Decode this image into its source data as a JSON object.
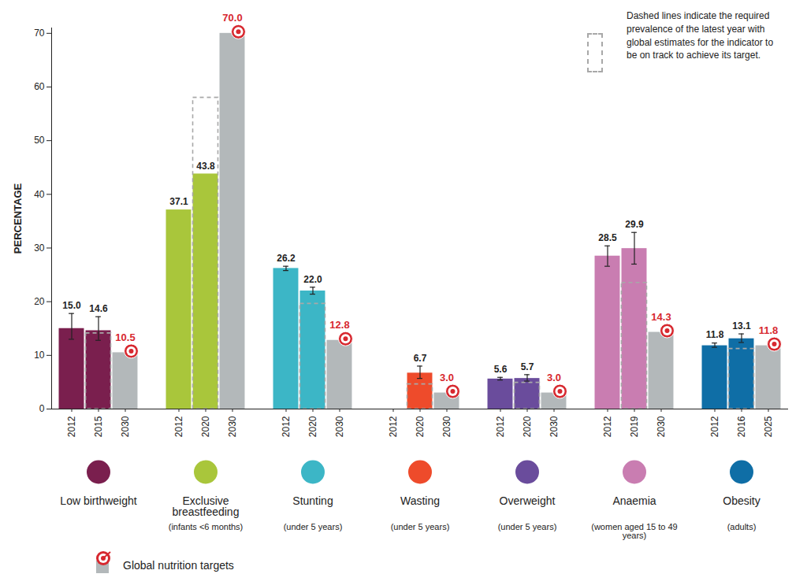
{
  "chart_data": {
    "type": "bar",
    "y_label": "PERCENTAGE",
    "ylim": [
      0,
      71
    ],
    "yticks": [
      0,
      10,
      20,
      30,
      40,
      50,
      60,
      70
    ],
    "data_labels": true,
    "annotation": "Dashed lines indicate the required prevalence of the latest year with global estimates for the indicator to be on track to achieve its target.",
    "legend_label": "Global nutrition targets",
    "target_color": "#b3b8ba",
    "target_label_color": "#d7282f",
    "groups": [
      {
        "name": "Low birthweight",
        "color": "#7a1f4e",
        "colors": [
          "#7a1f4e",
          "#7a1f4e",
          "#b3b8ba"
        ],
        "categories": [
          "2012",
          "2015",
          "2030"
        ],
        "values": [
          15.0,
          14.6,
          10.5
        ],
        "value_labels": [
          "15.0",
          "14.6",
          "10.5"
        ],
        "is_target": [
          false,
          false,
          true
        ],
        "error_low": [
          13.0,
          12.8,
          null
        ],
        "error_high": [
          17.8,
          17.2,
          null
        ],
        "required": [
          null,
          14.1,
          null
        ]
      },
      {
        "name": "Exclusive breastfeeding",
        "subtitle": "(infants <6 months)",
        "color": "#a9c63b",
        "colors": [
          "#a9c63b",
          "#a9c63b",
          "#b3b8ba"
        ],
        "categories": [
          "2012",
          "2020",
          "2030"
        ],
        "values": [
          37.1,
          43.8,
          70.0
        ],
        "value_labels": [
          "37.1",
          "43.8",
          "70.0"
        ],
        "is_target": [
          false,
          false,
          true
        ],
        "required": [
          null,
          58.0,
          null
        ]
      },
      {
        "name": "Stunting",
        "subtitle": "(under 5 years)",
        "color": "#3cb6c6",
        "colors": [
          "#3cb6c6",
          "#3cb6c6",
          "#b3b8ba"
        ],
        "categories": [
          "2012",
          "2020",
          "2030"
        ],
        "values": [
          26.2,
          22.0,
          12.8
        ],
        "value_labels": [
          "26.2",
          "22.0",
          "12.8"
        ],
        "is_target": [
          false,
          false,
          true
        ],
        "error_low": [
          25.8,
          21.4,
          null
        ],
        "error_high": [
          26.6,
          22.7,
          null
        ],
        "required": [
          null,
          19.6,
          null
        ]
      },
      {
        "name": "Wasting",
        "subtitle": "(under 5 years)",
        "color": "#ee4b2b",
        "colors": [
          "#ee4b2b",
          "#ee4b2b",
          "#b3b8ba"
        ],
        "categories": [
          "2012",
          "2020",
          "2030"
        ],
        "values": [
          null,
          6.7,
          3.0
        ],
        "value_labels": [
          null,
          "6.7",
          "3.0"
        ],
        "is_target": [
          false,
          false,
          true
        ],
        "error_low": [
          null,
          5.7,
          null
        ],
        "error_high": [
          null,
          8.0,
          null
        ],
        "required": [
          null,
          4.6,
          null
        ]
      },
      {
        "name": "Overweight",
        "subtitle": "(under 5 years)",
        "color": "#6a4c9c",
        "colors": [
          "#6a4c9c",
          "#6a4c9c",
          "#b3b8ba"
        ],
        "categories": [
          "2012",
          "2020",
          "2030"
        ],
        "values": [
          5.6,
          5.7,
          3.0
        ],
        "value_labels": [
          "5.6",
          "5.7",
          "3.0"
        ],
        "is_target": [
          false,
          false,
          true
        ],
        "error_low": [
          5.4,
          5.2,
          null
        ],
        "error_high": [
          5.9,
          6.4,
          null
        ],
        "required": [
          null,
          4.9,
          null
        ]
      },
      {
        "name": "Anaemia",
        "subtitle": "(women aged 15 to 49 years)",
        "color": "#c97db1",
        "colors": [
          "#c97db1",
          "#c97db1",
          "#b3b8ba"
        ],
        "categories": [
          "2012",
          "2019",
          "2030"
        ],
        "values": [
          28.5,
          29.9,
          14.3
        ],
        "value_labels": [
          "28.5",
          "29.9",
          "14.3"
        ],
        "is_target": [
          false,
          false,
          true
        ],
        "error_low": [
          26.6,
          27.0,
          null
        ],
        "error_high": [
          30.4,
          32.9,
          null
        ],
        "required": [
          null,
          23.5,
          null
        ]
      },
      {
        "name": "Obesity",
        "subtitle": "(adults)",
        "color": "#0f6ea6",
        "colors": [
          "#0f6ea6",
          "#0f6ea6",
          "#b3b8ba"
        ],
        "categories": [
          "2012",
          "2016",
          "2025"
        ],
        "values": [
          11.8,
          13.1,
          11.8
        ],
        "value_labels": [
          "11.8",
          "13.1",
          "11.8"
        ],
        "is_target": [
          false,
          false,
          true
        ],
        "error_low": [
          11.5,
          12.4,
          null
        ],
        "error_high": [
          12.3,
          14.0,
          null
        ],
        "required": [
          null,
          11.2,
          null
        ]
      }
    ]
  }
}
